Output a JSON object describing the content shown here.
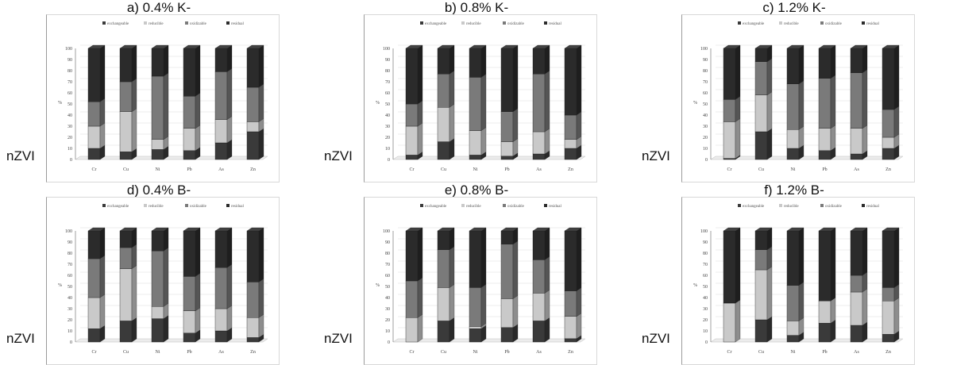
{
  "legend": [
    "exchangeable",
    "reducible",
    "oxidizable",
    "residual"
  ],
  "colors": {
    "exchangeable": "#3a3a3a",
    "reducible": "#c9c9c9",
    "oxidizable": "#7a7a7a",
    "residual": "#2b2b2b"
  },
  "shared_label": "nZVI",
  "chart_data": [
    {
      "type": "bar",
      "stacked": true,
      "title": "a) 0.4% K-",
      "ylabel": "%",
      "ylim": [
        0,
        100
      ],
      "categories": [
        "Cr",
        "Cu",
        "Ni",
        "Pb",
        "As",
        "Zn"
      ],
      "series": [
        {
          "name": "exchangeable",
          "values": [
            10,
            7,
            9,
            8,
            15,
            25
          ]
        },
        {
          "name": "reducible",
          "values": [
            20,
            36,
            9,
            20,
            21,
            9
          ]
        },
        {
          "name": "oxidizable",
          "values": [
            22,
            27,
            57,
            29,
            43,
            31
          ]
        },
        {
          "name": "residual",
          "values": [
            48,
            30,
            25,
            43,
            21,
            35
          ]
        }
      ]
    },
    {
      "type": "bar",
      "stacked": true,
      "title": "b) 0.8% K-",
      "ylabel": "%",
      "ylim": [
        0,
        100
      ],
      "categories": [
        "Cr",
        "Cu",
        "Ni",
        "Pb",
        "As",
        "Zn"
      ],
      "series": [
        {
          "name": "exchangeable",
          "values": [
            4,
            16,
            4,
            3,
            5,
            10
          ]
        },
        {
          "name": "reducible",
          "values": [
            26,
            31,
            22,
            13,
            20,
            8
          ]
        },
        {
          "name": "oxidizable",
          "values": [
            20,
            30,
            48,
            27,
            52,
            22
          ]
        },
        {
          "name": "residual",
          "values": [
            50,
            23,
            26,
            57,
            23,
            60
          ]
        }
      ]
    },
    {
      "type": "bar",
      "stacked": true,
      "title": "c) 1.2% K-",
      "ylabel": "%",
      "ylim": [
        0,
        100
      ],
      "categories": [
        "Cr",
        "Cu",
        "Ni",
        "Pb",
        "As",
        "Zn"
      ],
      "series": [
        {
          "name": "exchangeable",
          "values": [
            1,
            25,
            10,
            8,
            5,
            10
          ]
        },
        {
          "name": "reducible",
          "values": [
            33,
            33,
            17,
            20,
            23,
            10
          ]
        },
        {
          "name": "oxidizable",
          "values": [
            20,
            30,
            41,
            45,
            50,
            25
          ]
        },
        {
          "name": "residual",
          "values": [
            46,
            12,
            32,
            27,
            22,
            55
          ]
        }
      ]
    },
    {
      "type": "bar",
      "stacked": true,
      "title": "d) 0.4% B-",
      "ylabel": "%",
      "ylim": [
        0,
        100
      ],
      "categories": [
        "Cr",
        "Cu",
        "Ni",
        "Pb",
        "As",
        "Zn"
      ],
      "series": [
        {
          "name": "exchangeable",
          "values": [
            12,
            19,
            21,
            8,
            10,
            4
          ]
        },
        {
          "name": "reducible",
          "values": [
            28,
            47,
            11,
            20,
            20,
            18
          ]
        },
        {
          "name": "oxidizable",
          "values": [
            35,
            19,
            50,
            31,
            37,
            32
          ]
        },
        {
          "name": "residual",
          "values": [
            25,
            15,
            18,
            41,
            33,
            46
          ]
        }
      ]
    },
    {
      "type": "bar",
      "stacked": true,
      "title": "e) 0.8% B-",
      "ylabel": "%",
      "ylim": [
        0,
        100
      ],
      "categories": [
        "Cr",
        "Cu",
        "Ni",
        "Pb",
        "As",
        "Zn"
      ],
      "series": [
        {
          "name": "exchangeable",
          "values": [
            0,
            19,
            12,
            13,
            19,
            3
          ]
        },
        {
          "name": "reducible",
          "values": [
            22,
            30,
            2,
            26,
            25,
            20
          ]
        },
        {
          "name": "oxidizable",
          "values": [
            33,
            34,
            35,
            49,
            30,
            23
          ]
        },
        {
          "name": "residual",
          "values": [
            45,
            17,
            51,
            12,
            26,
            54
          ]
        }
      ]
    },
    {
      "type": "bar",
      "stacked": true,
      "title": "f) 1.2% B-",
      "ylabel": "%",
      "ylim": [
        0,
        100
      ],
      "categories": [
        "Cr",
        "Cu",
        "Ni",
        "Pb",
        "As",
        "Zn"
      ],
      "series": [
        {
          "name": "exchangeable",
          "values": [
            0,
            20,
            6,
            17,
            15,
            7
          ]
        },
        {
          "name": "reducible",
          "values": [
            35,
            45,
            13,
            20,
            30,
            30
          ]
        },
        {
          "name": "oxidizable",
          "values": [
            0,
            18,
            32,
            0,
            15,
            12
          ]
        },
        {
          "name": "residual",
          "values": [
            65,
            17,
            49,
            63,
            40,
            51
          ]
        }
      ]
    }
  ]
}
